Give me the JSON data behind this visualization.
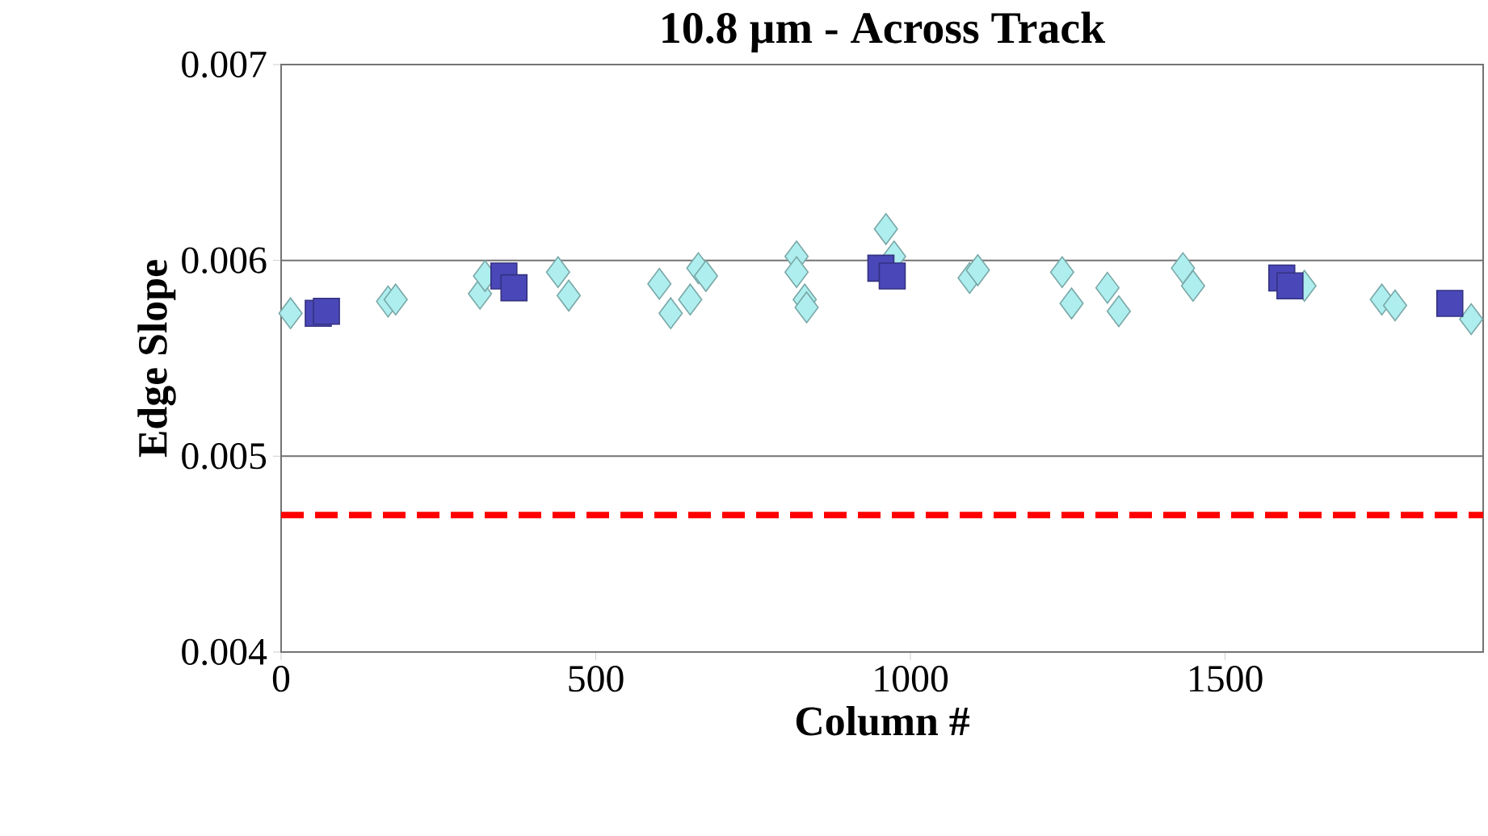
{
  "chart_data": {
    "type": "scatter",
    "title": "10.8 µm - Across Track",
    "xlabel": "Column #",
    "ylabel": "Edge Slope",
    "xlim": [
      0,
      1910
    ],
    "xticks": [
      0,
      500,
      1000,
      1500
    ],
    "ylim": [
      0.004,
      0.007
    ],
    "yticks": [
      0.004,
      0.005,
      0.006,
      0.007
    ],
    "grid": "y",
    "ref_lines": [
      {
        "axis": "y",
        "value": 0.0047,
        "color": "#ff0000",
        "line_style": "dashed"
      }
    ],
    "series": [
      {
        "color": "#aeeeee",
        "marker": "diamond",
        "x": [
          15,
          170,
          182,
          316,
          324,
          440,
          457,
          601,
          619,
          650,
          663,
          675,
          819,
          819,
          832,
          835,
          961,
          974,
          1094,
          1107,
          1241,
          1256,
          1313,
          1331,
          1433,
          1449,
          1626,
          1749,
          1770,
          1891
        ],
        "values": [
          0.00573,
          0.00579,
          0.0058,
          0.00583,
          0.00592,
          0.00594,
          0.00582,
          0.00588,
          0.00573,
          0.0058,
          0.00596,
          0.00592,
          0.00602,
          0.00594,
          0.0058,
          0.00576,
          0.00616,
          0.00602,
          0.00591,
          0.00595,
          0.00594,
          0.00578,
          0.00586,
          0.00574,
          0.00596,
          0.00587,
          0.00587,
          0.0058,
          0.00577,
          0.0057
        ]
      },
      {
        "color": "#4a48b8",
        "marker": "square",
        "x": [
          59,
          72,
          354,
          370,
          953,
          971,
          1590,
          1603,
          1857
        ],
        "values": [
          0.00573,
          0.00574,
          0.00592,
          0.00586,
          0.00596,
          0.00592,
          0.00591,
          0.00587,
          0.00578
        ]
      }
    ]
  }
}
